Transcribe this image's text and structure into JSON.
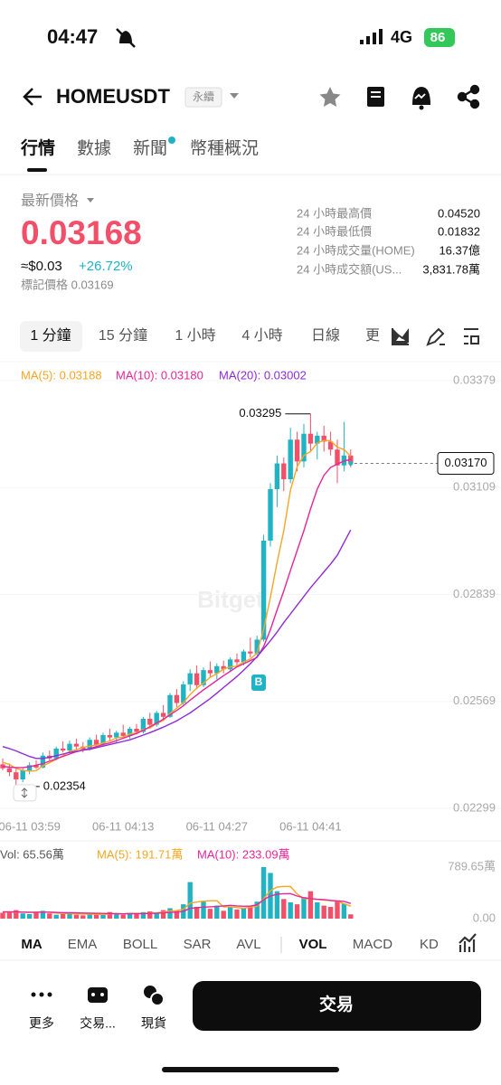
{
  "status_bar": {
    "time": "04:47",
    "network": "4G",
    "battery": "86"
  },
  "header": {
    "symbol": "HOMEUSDT",
    "badge": "永續"
  },
  "tabs": [
    "行情",
    "數據",
    "新聞",
    "幣種概況"
  ],
  "price": {
    "label": "最新價格",
    "last": "0.03168",
    "fiat": "≈$0.03",
    "change": "+26.72%",
    "mark": "標記價格 0.03169"
  },
  "stats": [
    {
      "label": "24 小時最高價",
      "value": "0.04520"
    },
    {
      "label": "24 小時最低價",
      "value": "0.01832"
    },
    {
      "label": "24 小時成交量(HOME)",
      "value": "16.37億"
    },
    {
      "label": "24 小時成交額(US...",
      "value": "3,831.78萬"
    }
  ],
  "intervals": [
    "1 分鐘",
    "15 分鐘",
    "1 小時",
    "4 小時",
    "日線",
    "更"
  ],
  "chart_data": [
    {
      "type": "candlestick",
      "watermark": "Bitget",
      "categories": [
        null,
        null,
        null,
        null,
        "06-11 03:59",
        null,
        null,
        null,
        null,
        null,
        null,
        null,
        null,
        null,
        null,
        null,
        null,
        null,
        "06-11 04:13",
        null,
        null,
        null,
        null,
        null,
        null,
        null,
        null,
        null,
        null,
        null,
        null,
        null,
        "06-11 04:27",
        null,
        null,
        null,
        null,
        null,
        null,
        null,
        null,
        null,
        null,
        null,
        null,
        null,
        "06-11 04:41",
        null,
        null,
        null,
        null,
        null,
        null
      ],
      "open": [
        0.0241,
        0.024,
        0.0239,
        0.02372,
        0.02395,
        0.02408,
        0.02402,
        0.02432,
        0.02425,
        0.0245,
        0.02445,
        0.02462,
        0.02455,
        0.02448,
        0.02472,
        0.0246,
        0.02484,
        0.02478,
        0.0249,
        0.02482,
        0.025,
        0.02492,
        0.02525,
        0.0251,
        0.0254,
        0.0253,
        0.02585,
        0.02565,
        0.02612,
        0.0264,
        0.0261,
        0.02648,
        0.0264,
        0.02658,
        0.0265,
        0.02675,
        0.02668,
        0.02695,
        0.0269,
        0.02725,
        0.02975,
        0.03105,
        0.0317,
        0.0313,
        0.0323,
        0.03175,
        0.03245,
        0.0322,
        0.0324,
        0.03225,
        0.03205,
        0.03165,
        0.0319
      ],
      "high": [
        0.02425,
        0.02412,
        0.02398,
        0.024,
        0.02415,
        0.0242,
        0.0244,
        0.02445,
        0.02455,
        0.02468,
        0.0247,
        0.02475,
        0.02466,
        0.02478,
        0.02485,
        0.0249,
        0.025,
        0.02495,
        0.0251,
        0.02505,
        0.02512,
        0.0253,
        0.0254,
        0.02545,
        0.0256,
        0.0259,
        0.026,
        0.0262,
        0.0265,
        0.0266,
        0.02655,
        0.0267,
        0.02665,
        0.02672,
        0.0268,
        0.0269,
        0.027,
        0.0273,
        0.02735,
        0.0299,
        0.0312,
        0.0319,
        0.03185,
        0.0326,
        0.0325,
        0.0327,
        0.03295,
        0.0325,
        0.03265,
        0.0325,
        0.0323,
        0.03275,
        0.03205
      ],
      "low": [
        0.02395,
        0.0238,
        0.02354,
        0.02365,
        0.02385,
        0.02398,
        0.024,
        0.0242,
        0.0242,
        0.0244,
        0.02438,
        0.02448,
        0.0244,
        0.02445,
        0.02455,
        0.02458,
        0.0247,
        0.02465,
        0.02478,
        0.02475,
        0.02485,
        0.02488,
        0.02505,
        0.02505,
        0.0252,
        0.02528,
        0.02555,
        0.0256,
        0.02595,
        0.026,
        0.02605,
        0.0263,
        0.02625,
        0.0264,
        0.02645,
        0.02655,
        0.0266,
        0.0268,
        0.02685,
        0.0272,
        0.0296,
        0.0306,
        0.031,
        0.0312,
        0.0315,
        0.0316,
        0.032,
        0.0318,
        0.032,
        0.0319,
        0.0312,
        0.0315,
        0.0316
      ],
      "close": [
        0.024,
        0.0239,
        0.02372,
        0.02395,
        0.02408,
        0.02402,
        0.02432,
        0.02425,
        0.0245,
        0.02445,
        0.02462,
        0.02455,
        0.02448,
        0.02472,
        0.0246,
        0.02484,
        0.02478,
        0.0249,
        0.02482,
        0.025,
        0.02492,
        0.02525,
        0.0251,
        0.0254,
        0.0253,
        0.02585,
        0.02565,
        0.02612,
        0.0264,
        0.0261,
        0.02648,
        0.0264,
        0.02658,
        0.0265,
        0.02675,
        0.02668,
        0.02695,
        0.0269,
        0.02725,
        0.02975,
        0.03105,
        0.0317,
        0.0313,
        0.0323,
        0.03175,
        0.03245,
        0.0322,
        0.0324,
        0.03225,
        0.03205,
        0.03165,
        0.0319,
        0.0317
      ],
      "up_color": "#1fb3c4",
      "down_color": "#f2506a",
      "series": [
        {
          "name": "MA(5): 0.03188",
          "color": "#f5a623",
          "values": [
            0.02415,
            0.0241,
            0.024,
            0.02395,
            0.02393,
            0.02394,
            0.02406,
            0.02414,
            0.02423,
            0.02432,
            0.02443,
            0.02447,
            0.02453,
            0.02456,
            0.02459,
            0.02464,
            0.02469,
            0.02477,
            0.02479,
            0.02487,
            0.02489,
            0.02498,
            0.02502,
            0.02513,
            0.02521,
            0.02538,
            0.02552,
            0.02566,
            0.02586,
            0.02603,
            0.02615,
            0.0263,
            0.02639,
            0.02651,
            0.02656,
            0.02658,
            0.02669,
            0.02676,
            0.02691,
            0.02751,
            0.02832,
            0.0292,
            0.03,
            0.03103,
            0.03162,
            0.0319,
            0.032,
            0.03222,
            0.03228,
            0.03227,
            0.03211,
            0.03205,
            0.03188
          ]
        },
        {
          "name": "MA(10): 0.03180",
          "color": "#e6259b",
          "values": [
            0.02405,
            0.02403,
            0.02402,
            0.02402,
            0.02404,
            0.02408,
            0.02412,
            0.02418,
            0.02424,
            0.0243,
            0.02436,
            0.02442,
            0.02446,
            0.0245,
            0.02455,
            0.0246,
            0.02464,
            0.0247,
            0.02476,
            0.02482,
            0.02488,
            0.02496,
            0.02505,
            0.02514,
            0.02524,
            0.02535,
            0.02546,
            0.02558,
            0.02572,
            0.02585,
            0.02598,
            0.0261,
            0.02622,
            0.02634,
            0.02645,
            0.02656,
            0.02664,
            0.02672,
            0.0268,
            0.02708,
            0.0275,
            0.028,
            0.02848,
            0.029,
            0.0295,
            0.03,
            0.03055,
            0.03105,
            0.0314,
            0.0316,
            0.03168,
            0.03176,
            0.0318
          ]
        },
        {
          "name": "MA(20): 0.03002",
          "color": "#8e2bd6",
          "values": [
            0.02455,
            0.0245,
            0.02444,
            0.02437,
            0.0243,
            0.02425,
            0.02425,
            0.02428,
            0.02432,
            0.02436,
            0.0244,
            0.02443,
            0.02446,
            0.02448,
            0.02452,
            0.02456,
            0.0246,
            0.02464,
            0.02468,
            0.02472,
            0.02478,
            0.02484,
            0.0249,
            0.02497,
            0.02504,
            0.02512,
            0.0252,
            0.0253,
            0.0254,
            0.02552,
            0.02564,
            0.02576,
            0.0259,
            0.02604,
            0.02618,
            0.02632,
            0.02648,
            0.02664,
            0.02682,
            0.02702,
            0.02722,
            0.02744,
            0.02768,
            0.0279,
            0.02812,
            0.02834,
            0.02856,
            0.02876,
            0.02896,
            0.02916,
            0.02938,
            0.0297,
            0.03002
          ]
        }
      ],
      "max_label": {
        "value": 0.03295,
        "label": "0.03295"
      },
      "min_label": {
        "value": 0.02354,
        "label": "0.02354"
      },
      "last_price": {
        "value": 0.0317,
        "label": "0.03170"
      },
      "marker": "B",
      "ylim": [
        0.02299,
        0.03379
      ],
      "yticks": [
        0.03379,
        0.03109,
        0.02839,
        0.02569,
        0.02299
      ]
    },
    {
      "type": "bar",
      "title": "Vol: 65.56萬",
      "values": [
        90,
        110,
        130,
        80,
        70,
        100,
        120,
        80,
        60,
        70,
        90,
        60,
        50,
        80,
        60,
        70,
        100,
        80,
        60,
        90,
        70,
        100,
        110,
        90,
        130,
        160,
        120,
        220,
        560,
        180,
        260,
        150,
        200,
        120,
        180,
        140,
        160,
        200,
        260,
        789.65,
        700,
        420,
        300,
        250,
        220,
        330,
        420,
        250,
        200,
        180,
        280,
        230,
        65.56
      ],
      "series": [
        {
          "name": "MA(5): 191.71萬",
          "color": "#f5a623",
          "values": [
            100,
            100,
            98,
            100,
            96,
            98,
            102,
            96,
            84,
            80,
            78,
            74,
            70,
            70,
            66,
            64,
            72,
            78,
            74,
            80,
            80,
            80,
            86,
            88,
            100,
            116,
            122,
            146,
            238,
            254,
            268,
            274,
            274,
            182,
            182,
            170,
            160,
            176,
            188,
            308,
            430,
            484,
            494,
            492,
            378,
            304,
            308,
            294,
            284,
            276,
            266,
            228,
            191.71
          ]
        },
        {
          "name": "MA(10): 233.09萬",
          "color": "#e6259b",
          "values": [
            105,
            104,
            102,
            100,
            98,
            98,
            100,
            100,
            96,
            92,
            90,
            88,
            86,
            84,
            82,
            80,
            78,
            76,
            74,
            76,
            78,
            78,
            80,
            82,
            88,
            96,
            100,
            112,
            158,
            168,
            176,
            182,
            186,
            196,
            204,
            196,
            190,
            192,
            210,
            292,
            348,
            372,
            382,
            384,
            346,
            320,
            308,
            296,
            292,
            280,
            270,
            264,
            233.09
          ]
        }
      ],
      "ylim": [
        0,
        789.65
      ],
      "yticks": [
        {
          "value": 789.65,
          "label": "789.65萬"
        },
        {
          "value": 0,
          "label": "0.00"
        }
      ]
    }
  ],
  "indicators": [
    "MA",
    "EMA",
    "BOLL",
    "SAR",
    "AVL",
    "VOL",
    "MACD",
    "KD"
  ],
  "bottom_bar": {
    "items": [
      "更多",
      "交易...",
      "現貨"
    ],
    "trade": "交易"
  }
}
